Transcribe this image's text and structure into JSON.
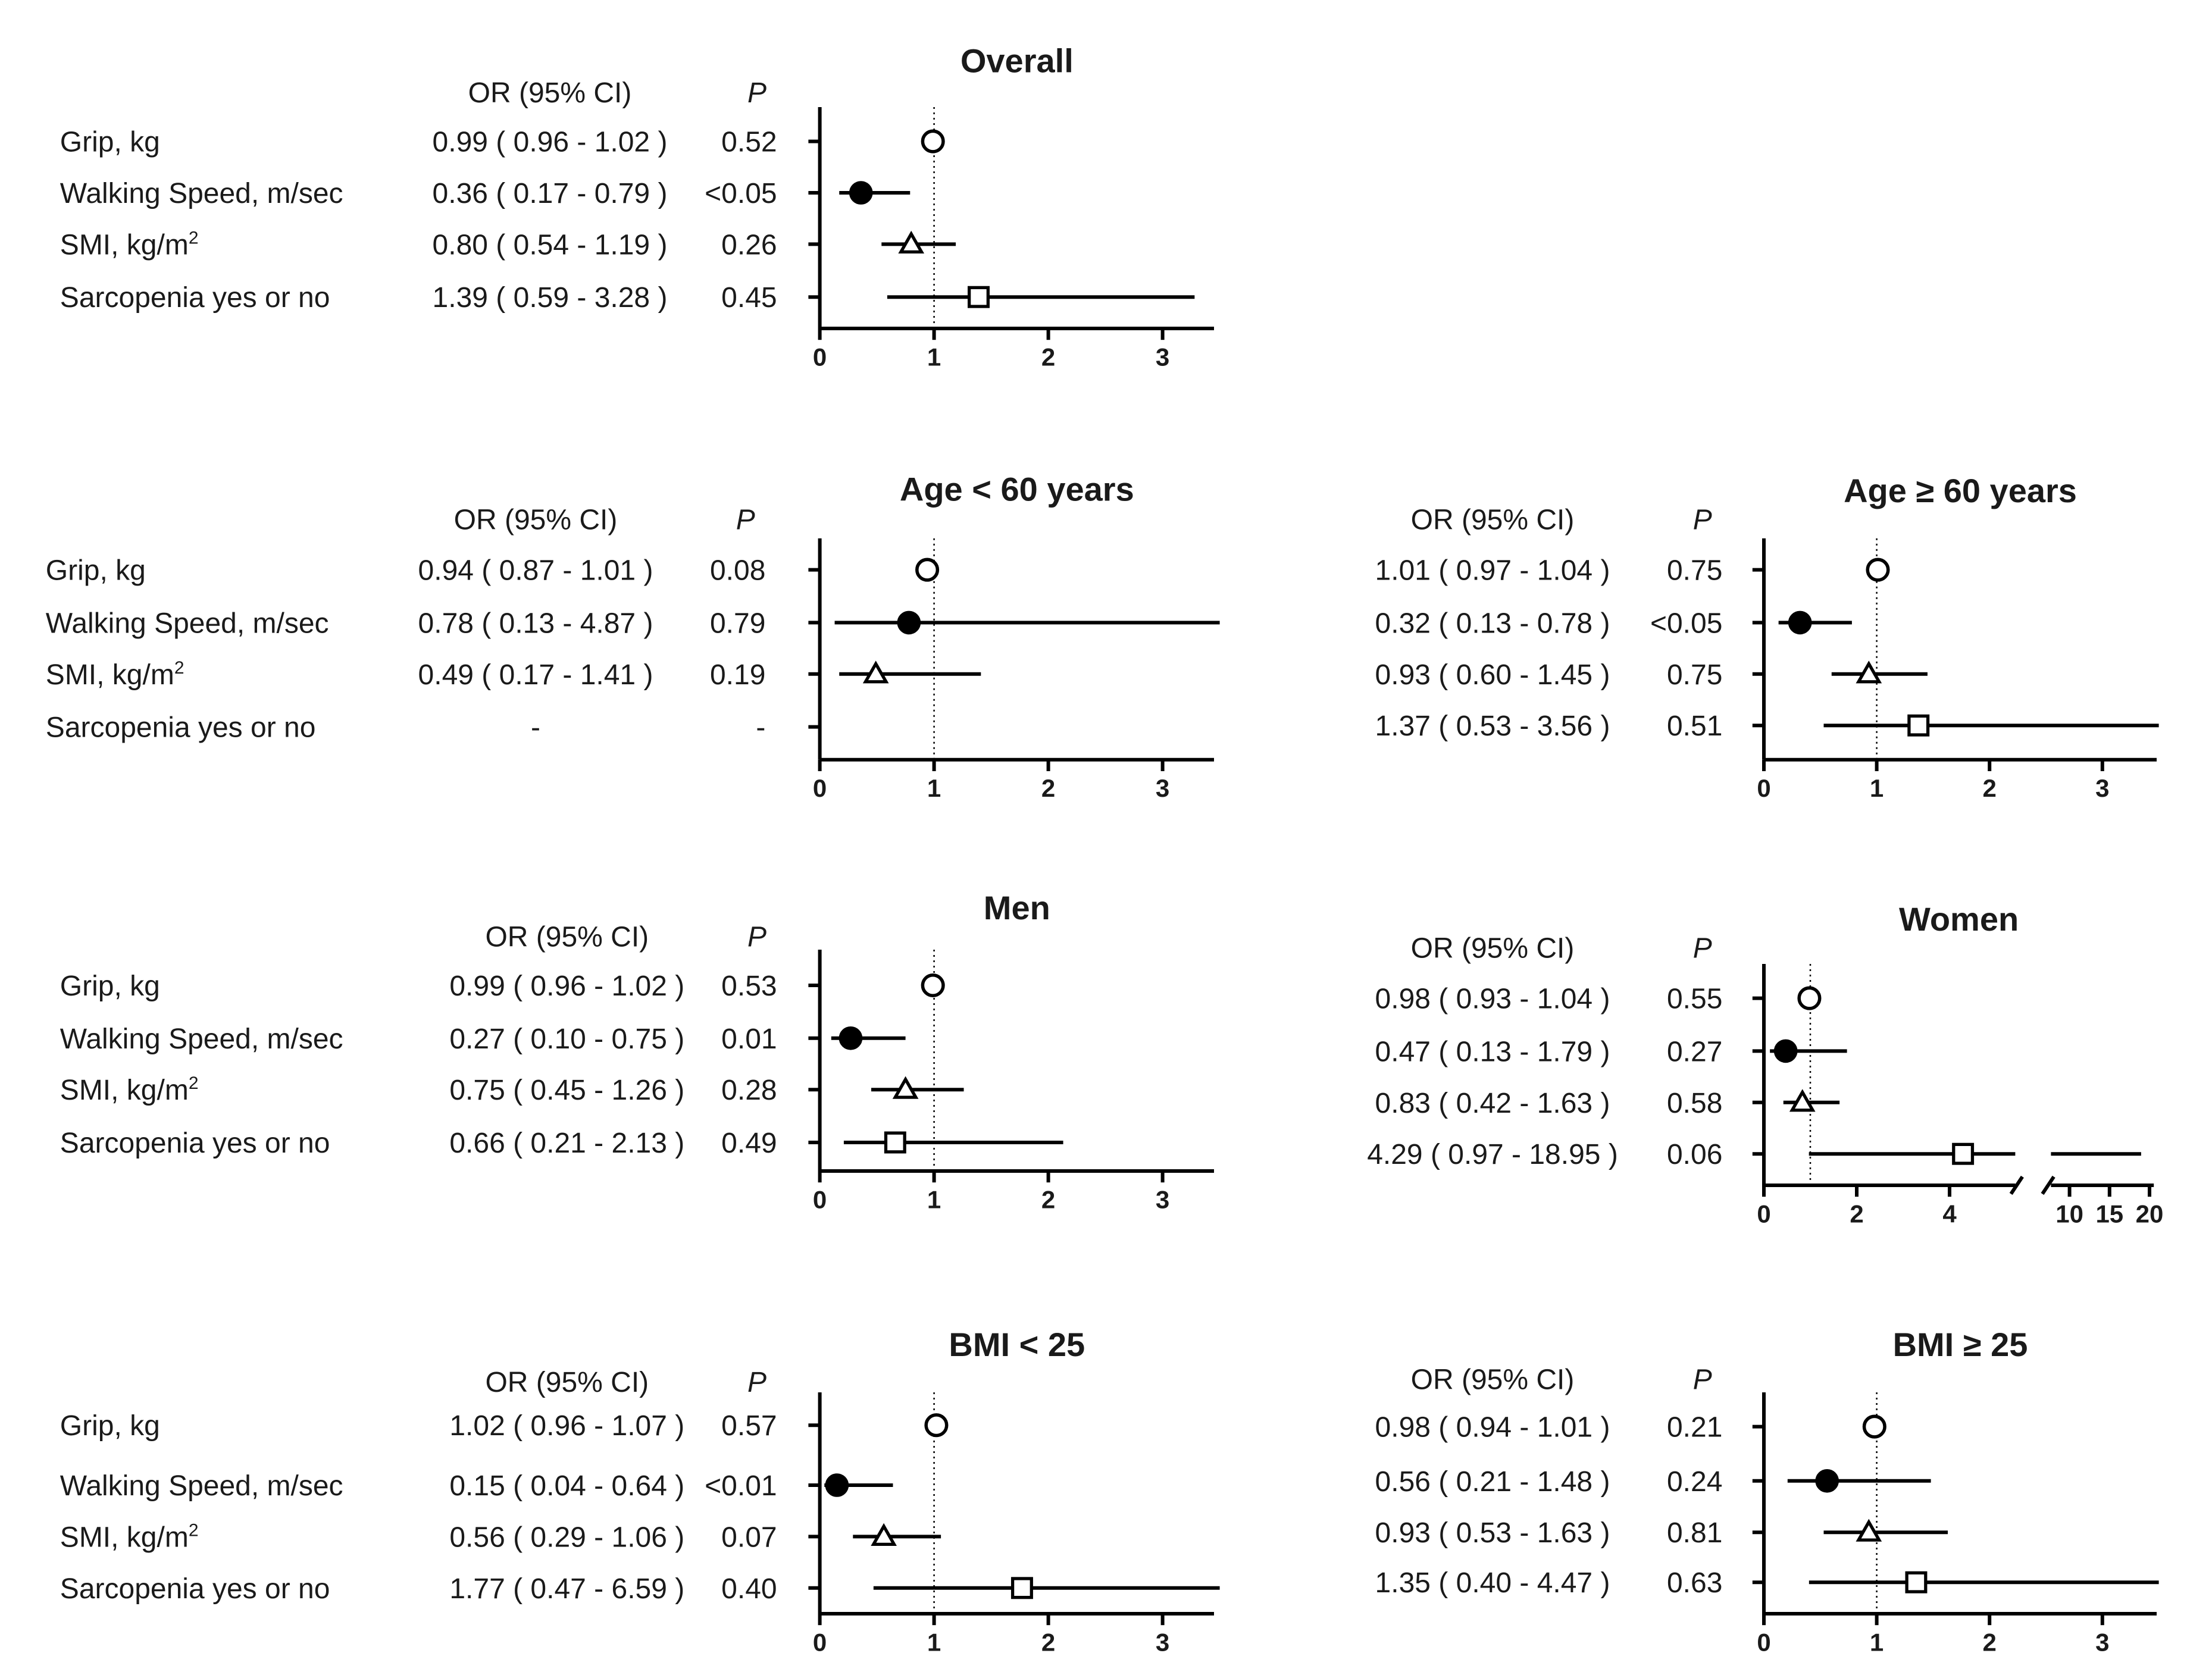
{
  "chart_data": [
    {
      "type": "forest",
      "title": "Overall",
      "row_labels": [
        "Grip, kg",
        "Walking Speed, m/sec",
        "SMI, kg/m²",
        "Sarcopenia yes or no"
      ],
      "col_or": "OR (95% CI)",
      "col_p": "P",
      "or_text": [
        "0.99 ( 0.96 - 1.02 )",
        "0.36 ( 0.17 - 0.79 )",
        "0.80 ( 0.54 - 1.19 )",
        "1.39 ( 0.59 - 3.28 )"
      ],
      "p_text": [
        "0.52",
        "<0.05",
        "0.26",
        "0.45"
      ],
      "or": [
        0.99,
        0.36,
        0.8,
        1.39
      ],
      "lo": [
        0.96,
        0.17,
        0.54,
        0.59
      ],
      "hi": [
        1.02,
        0.79,
        1.19,
        3.28
      ],
      "xlim": [
        0,
        3.5
      ],
      "xticks": [
        0,
        1,
        2,
        3
      ],
      "reference": 1
    },
    {
      "type": "forest",
      "title": "Age < 60 years",
      "row_labels": [
        "Grip, kg",
        "Walking Speed, m/sec",
        "SMI, kg/m²",
        "Sarcopenia yes or no"
      ],
      "col_or": "OR (95% CI)",
      "col_p": "P",
      "or_text": [
        "0.94 ( 0.87 - 1.01 )",
        "0.78 ( 0.13 - 4.87 )",
        "0.49 ( 0.17 - 1.41 )",
        "-"
      ],
      "p_text": [
        "0.08",
        "0.79",
        "0.19",
        "-"
      ],
      "or": [
        0.94,
        0.78,
        0.49,
        null
      ],
      "lo": [
        0.87,
        0.13,
        0.17,
        null
      ],
      "hi": [
        1.01,
        4.87,
        1.41,
        null
      ],
      "xlim": [
        0,
        3.5
      ],
      "xticks": [
        0,
        1,
        2,
        3
      ],
      "reference": 1
    },
    {
      "type": "forest",
      "title": "Age ≥ 60 years",
      "row_labels": [],
      "col_or": "OR (95% CI)",
      "col_p": "P",
      "or_text": [
        "1.01 ( 0.97 - 1.04 )",
        "0.32 ( 0.13 - 0.78 )",
        "0.93 ( 0.60 - 1.45 )",
        "1.37 ( 0.53 - 3.56 )"
      ],
      "p_text": [
        "0.75",
        "<0.05",
        "0.75",
        "0.51"
      ],
      "or": [
        1.01,
        0.32,
        0.93,
        1.37
      ],
      "lo": [
        0.97,
        0.13,
        0.6,
        0.53
      ],
      "hi": [
        1.04,
        0.78,
        1.45,
        3.56
      ],
      "xlim": [
        0,
        3.5
      ],
      "xticks": [
        0,
        1,
        2,
        3
      ],
      "reference": 1
    },
    {
      "type": "forest",
      "title": "Men",
      "row_labels": [
        "Grip, kg",
        "Walking Speed, m/sec",
        "SMI, kg/m²",
        "Sarcopenia yes or no"
      ],
      "col_or": "OR (95% CI)",
      "col_p": "P",
      "or_text": [
        "0.99 ( 0.96 - 1.02 )",
        "0.27 ( 0.10 - 0.75 )",
        "0.75 ( 0.45 - 1.26 )",
        "0.66 ( 0.21 - 2.13 )"
      ],
      "p_text": [
        "0.53",
        "0.01",
        "0.28",
        "0.49"
      ],
      "or": [
        0.99,
        0.27,
        0.75,
        0.66
      ],
      "lo": [
        0.96,
        0.1,
        0.45,
        0.21
      ],
      "hi": [
        1.02,
        0.75,
        1.26,
        2.13
      ],
      "xlim": [
        0,
        3.5
      ],
      "xticks": [
        0,
        1,
        2,
        3
      ],
      "reference": 1
    },
    {
      "type": "forest",
      "title": "Women",
      "row_labels": [],
      "col_or": "OR (95% CI)",
      "col_p": "P",
      "or_text": [
        "0.98 ( 0.93 - 1.04 )",
        "0.47 ( 0.13 - 1.79 )",
        "0.83 ( 0.42 - 1.63 )",
        "4.29 ( 0.97 - 18.95 )"
      ],
      "p_text": [
        "0.55",
        "0.27",
        "0.58",
        "0.06"
      ],
      "or": [
        0.98,
        0.47,
        0.83,
        4.29
      ],
      "lo": [
        0.93,
        0.13,
        0.42,
        0.97
      ],
      "hi": [
        1.04,
        1.79,
        1.63,
        18.95
      ],
      "xlim": [
        0,
        20
      ],
      "broken_axis": [
        5.5,
        7.5
      ],
      "xticks": [
        0,
        2,
        4,
        10,
        15,
        20
      ],
      "reference": 1
    },
    {
      "type": "forest",
      "title": "BMI < 25",
      "row_labels": [
        "Grip, kg",
        "Walking Speed, m/sec",
        "SMI, kg/m²",
        "Sarcopenia yes or no"
      ],
      "col_or": "OR (95% CI)",
      "col_p": "P",
      "or_text": [
        "1.02 ( 0.96 - 1.07 )",
        "0.15 ( 0.04 - 0.64 )",
        "0.56 ( 0.29 - 1.06 )",
        "1.77 ( 0.47 - 6.59 )"
      ],
      "p_text": [
        "0.57",
        "<0.01",
        "0.07",
        "0.40"
      ],
      "or": [
        1.02,
        0.15,
        0.56,
        1.77
      ],
      "lo": [
        0.96,
        0.04,
        0.29,
        0.47
      ],
      "hi": [
        1.07,
        0.64,
        1.06,
        6.59
      ],
      "xlim": [
        0,
        3.5
      ],
      "xticks": [
        0,
        1,
        2,
        3
      ],
      "reference": 1
    },
    {
      "type": "forest",
      "title": "BMI ≥ 25",
      "row_labels": [],
      "col_or": "OR (95% CI)",
      "col_p": "P",
      "or_text": [
        "0.98 ( 0.94 - 1.01 )",
        "0.56 ( 0.21 - 1.48 )",
        "0.93 ( 0.53 - 1.63 )",
        "1.35 ( 0.40 - 4.47 )"
      ],
      "p_text": [
        "0.21",
        "0.24",
        "0.81",
        "0.63"
      ],
      "or": [
        0.98,
        0.56,
        0.93,
        1.35
      ],
      "lo": [
        0.94,
        0.21,
        0.53,
        0.4
      ],
      "hi": [
        1.01,
        1.48,
        1.63,
        4.47
      ],
      "xlim": [
        0,
        3.5
      ],
      "xticks": [
        0,
        1,
        2,
        3
      ],
      "reference": 1
    }
  ],
  "markers": [
    "open-circle",
    "filled-circle",
    "open-triangle",
    "open-square"
  ]
}
